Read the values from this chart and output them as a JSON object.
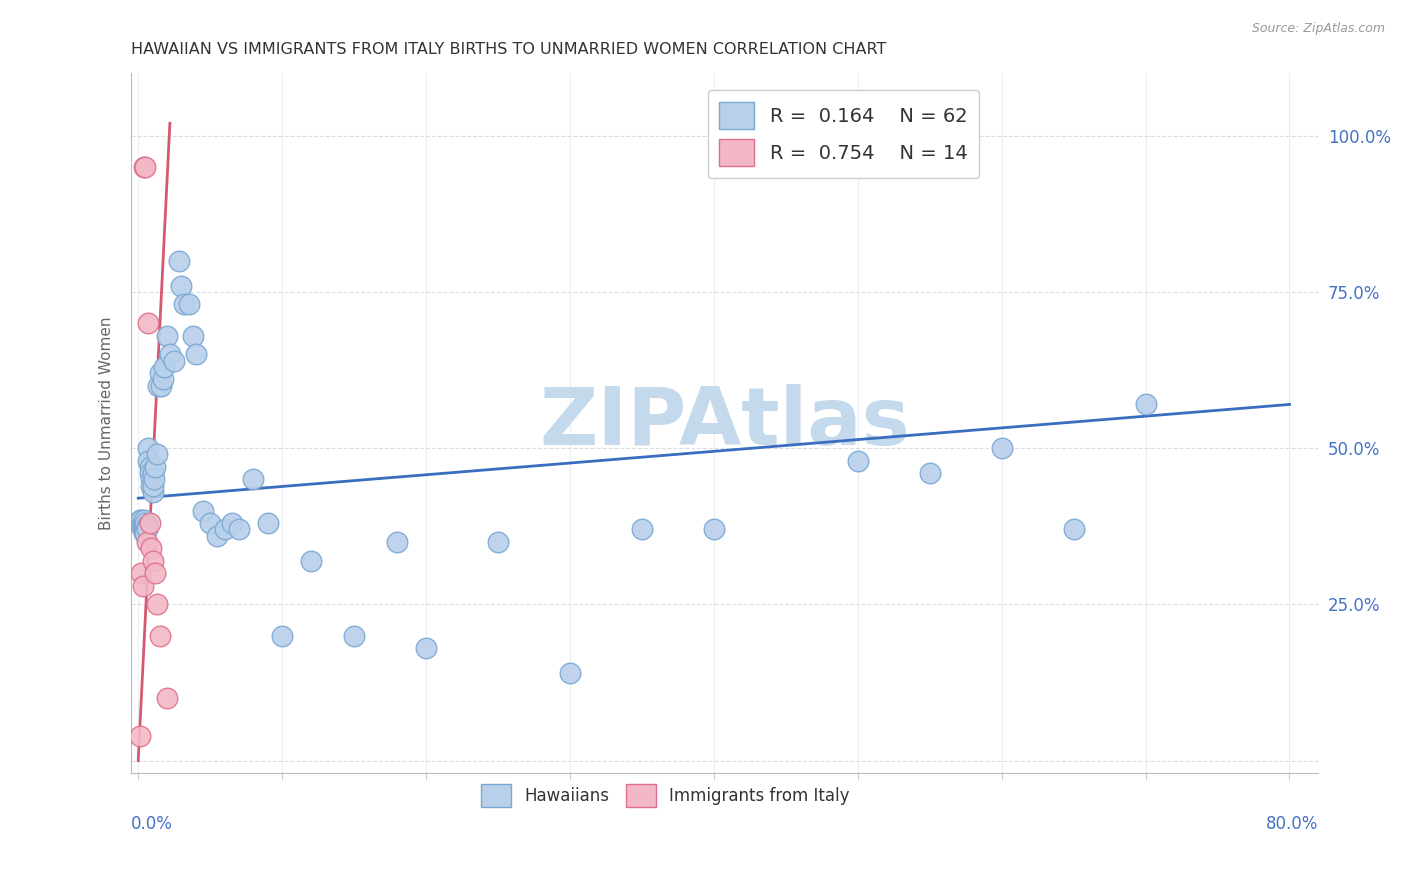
{
  "title": "HAWAIIAN VS IMMIGRANTS FROM ITALY BIRTHS TO UNMARRIED WOMEN CORRELATION CHART",
  "source": "Source: ZipAtlas.com",
  "ylabel": "Births to Unmarried Women",
  "hawaiian_color": "#b8d0ea",
  "hawaii_edge_color": "#7aa8d4",
  "italy_color": "#f2b8c6",
  "italy_edge_color": "#e0708a",
  "blue_line_color": "#3a6dbf",
  "pink_line_color": "#d45870",
  "watermark_color": "#c5d9ec",
  "background_color": "#ffffff",
  "grid_color": "#d8dde8",
  "ytick_color": "#4472c4",
  "xtick_color": "#4472c4",
  "hawaiian_x": [
    0.001,
    0.002,
    0.002,
    0.003,
    0.003,
    0.003,
    0.004,
    0.004,
    0.004,
    0.005,
    0.005,
    0.005,
    0.006,
    0.006,
    0.007,
    0.007,
    0.008,
    0.008,
    0.009,
    0.009,
    0.01,
    0.01,
    0.01,
    0.011,
    0.012,
    0.013,
    0.014,
    0.015,
    0.016,
    0.017,
    0.018,
    0.02,
    0.022,
    0.025,
    0.028,
    0.03,
    0.032,
    0.035,
    0.038,
    0.04,
    0.045,
    0.05,
    0.055,
    0.06,
    0.065,
    0.07,
    0.08,
    0.09,
    0.1,
    0.12,
    0.15,
    0.18,
    0.2,
    0.25,
    0.3,
    0.35,
    0.4,
    0.5,
    0.55,
    0.6,
    0.65,
    0.7
  ],
  "hawaiian_y": [
    0.385,
    0.385,
    0.375,
    0.38,
    0.375,
    0.37,
    0.385,
    0.375,
    0.365,
    0.375,
    0.38,
    0.365,
    0.375,
    0.37,
    0.5,
    0.48,
    0.47,
    0.46,
    0.45,
    0.44,
    0.43,
    0.46,
    0.44,
    0.45,
    0.47,
    0.49,
    0.6,
    0.62,
    0.6,
    0.61,
    0.63,
    0.68,
    0.65,
    0.64,
    0.8,
    0.76,
    0.73,
    0.73,
    0.68,
    0.65,
    0.4,
    0.38,
    0.36,
    0.37,
    0.38,
    0.37,
    0.45,
    0.38,
    0.2,
    0.32,
    0.2,
    0.35,
    0.18,
    0.35,
    0.14,
    0.37,
    0.37,
    0.48,
    0.46,
    0.5,
    0.37,
    0.57
  ],
  "italy_x": [
    0.001,
    0.002,
    0.003,
    0.004,
    0.005,
    0.006,
    0.007,
    0.008,
    0.009,
    0.01,
    0.012,
    0.013,
    0.015,
    0.02
  ],
  "italy_y": [
    0.04,
    0.3,
    0.28,
    0.95,
    0.95,
    0.35,
    0.7,
    0.38,
    0.34,
    0.32,
    0.3,
    0.25,
    0.2,
    0.1
  ],
  "blue_line_x": [
    0.0,
    0.8
  ],
  "blue_line_y": [
    0.42,
    0.57
  ],
  "pink_line_x": [
    0.0,
    0.022
  ],
  "pink_line_y": [
    0.0,
    1.02
  ],
  "xlim": [
    -0.005,
    0.82
  ],
  "ylim": [
    -0.02,
    1.1
  ],
  "xticks": [
    0.0,
    0.1,
    0.2,
    0.3,
    0.4,
    0.5,
    0.6,
    0.7,
    0.8
  ],
  "yticks": [
    0.0,
    0.25,
    0.5,
    0.75,
    1.0
  ],
  "ytick_labels": [
    "",
    "25.0%",
    "50.0%",
    "75.0%",
    "100.0%"
  ]
}
